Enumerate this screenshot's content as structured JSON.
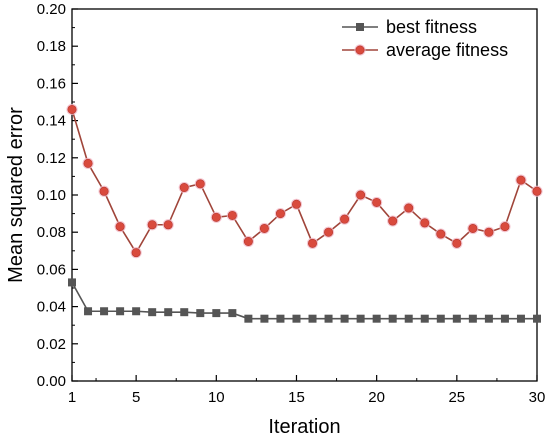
{
  "chart_data": {
    "type": "line",
    "title": "",
    "xlabel": "Iteration",
    "ylabel": "Mean squared error",
    "xlim": [
      1,
      30
    ],
    "ylim": [
      0.0,
      0.2
    ],
    "xticks": [
      "1",
      "5",
      "10",
      "15",
      "20",
      "25",
      "30"
    ],
    "yticks": [
      "0.00",
      "0.02",
      "0.04",
      "0.06",
      "0.08",
      "0.10",
      "0.12",
      "0.14",
      "0.16",
      "0.18",
      "0.20"
    ],
    "grid": false,
    "legend_position": "top-right",
    "x": [
      1,
      2,
      3,
      4,
      5,
      6,
      7,
      8,
      9,
      10,
      11,
      12,
      13,
      14,
      15,
      16,
      17,
      18,
      19,
      20,
      21,
      22,
      23,
      24,
      25,
      26,
      27,
      28,
      29,
      30
    ],
    "series": [
      {
        "name": "best fitness",
        "marker": "square",
        "color": "#555555",
        "marker_color": "#555555",
        "values": [
          0.053,
          0.0375,
          0.0375,
          0.0375,
          0.0375,
          0.037,
          0.037,
          0.037,
          0.0365,
          0.0365,
          0.0365,
          0.0335,
          0.0335,
          0.0335,
          0.0335,
          0.0335,
          0.0335,
          0.0335,
          0.0335,
          0.0335,
          0.0335,
          0.0335,
          0.0335,
          0.0335,
          0.0335,
          0.0335,
          0.0335,
          0.0335,
          0.0335,
          0.0335
        ]
      },
      {
        "name": "average fitness",
        "marker": "circle",
        "color": "#a0453a",
        "marker_color": "#d94a3d",
        "values": [
          0.146,
          0.117,
          0.102,
          0.083,
          0.069,
          0.084,
          0.084,
          0.104,
          0.106,
          0.088,
          0.089,
          0.075,
          0.082,
          0.09,
          0.095,
          0.074,
          0.08,
          0.087,
          0.1,
          0.096,
          0.086,
          0.093,
          0.085,
          0.079,
          0.074,
          0.082,
          0.08,
          0.083,
          0.108,
          0.102
        ]
      }
    ]
  }
}
